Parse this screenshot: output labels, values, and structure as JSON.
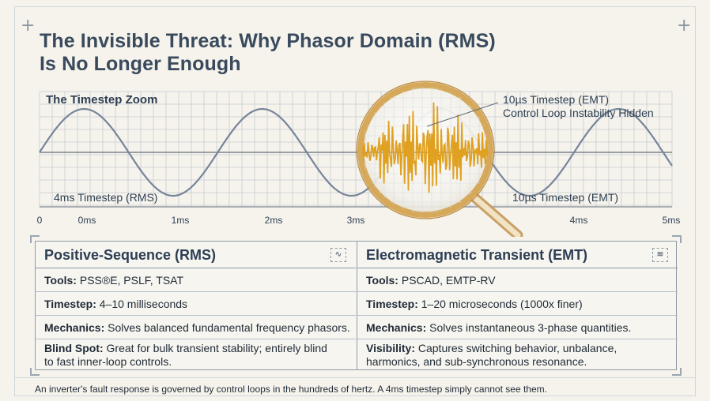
{
  "title": {
    "line1": "The Invisible Threat: Why Phasor Domain (RMS)",
    "line2": "Is No Longer Enough"
  },
  "chart": {
    "zoom_title": "The Timestep Zoom",
    "left_label": "4ms Timestep (RMS)",
    "right_label": "10µs Timestep (EMT)",
    "callout_line1": "10µs Timestep (EMT)",
    "callout_line2": "Control Loop Instability Hidden",
    "x_ticks": [
      "0",
      "0ms",
      "1ms",
      "2ms",
      "3ms",
      "4ms",
      "5ms"
    ],
    "colors": {
      "sine": "#76859a",
      "noise": "#e0a020",
      "grid": "#c4ccd4",
      "axis": "#5f6b77",
      "lens_rim": "#d6a85a"
    }
  },
  "chart_data": {
    "type": "line",
    "series": [
      {
        "values": [
          0,
          0.9,
          0,
          -0.9,
          0,
          0.9,
          0,
          -0.9,
          0
        ]
      },
      {
        "values": [
          0.2,
          -0.5,
          0.8,
          -0.3,
          0.6,
          -0.9,
          0.4,
          -0.2,
          0.7,
          -0.6,
          0.3,
          -0.8,
          0.5,
          -0.1,
          0.9,
          -0.4
        ]
      }
    ]
  },
  "rms": {
    "heading": "Positive-Sequence (RMS)",
    "tools_label": "Tools:",
    "tools_value": "PSS®E, PSLF, TSAT",
    "timestep_label": "Timestep:",
    "timestep_value": "4–10 milliseconds",
    "mechanics_label": "Mechanics:",
    "mechanics_value": "Solves balanced fundamental frequency phasors.",
    "blind_label": "Blind Spot:",
    "blind_value_1": "Great for bulk transient stability; entirely blind",
    "blind_value_2": "to fast inner-loop controls."
  },
  "emt": {
    "heading": "Electromagnetic Transient (EMT)",
    "tools_label": "Tools:",
    "tools_value": "PSCAD, EMTP-RV",
    "timestep_label": "Timestep:",
    "timestep_value": "1–20 microseconds (1000x finer)",
    "mechanics_label": "Mechanics:",
    "mechanics_value": "Solves instantaneous 3-phase quantities.",
    "visibility_label": "Visibility:",
    "visibility_value_1": "Captures switching behavior, unbalance,",
    "visibility_value_2": "harmonics, and sub-synchronous resonance."
  },
  "footer": "An inverter's fault response is governed by control loops in the hundreds of hertz. A 4ms timestep simply cannot see them."
}
